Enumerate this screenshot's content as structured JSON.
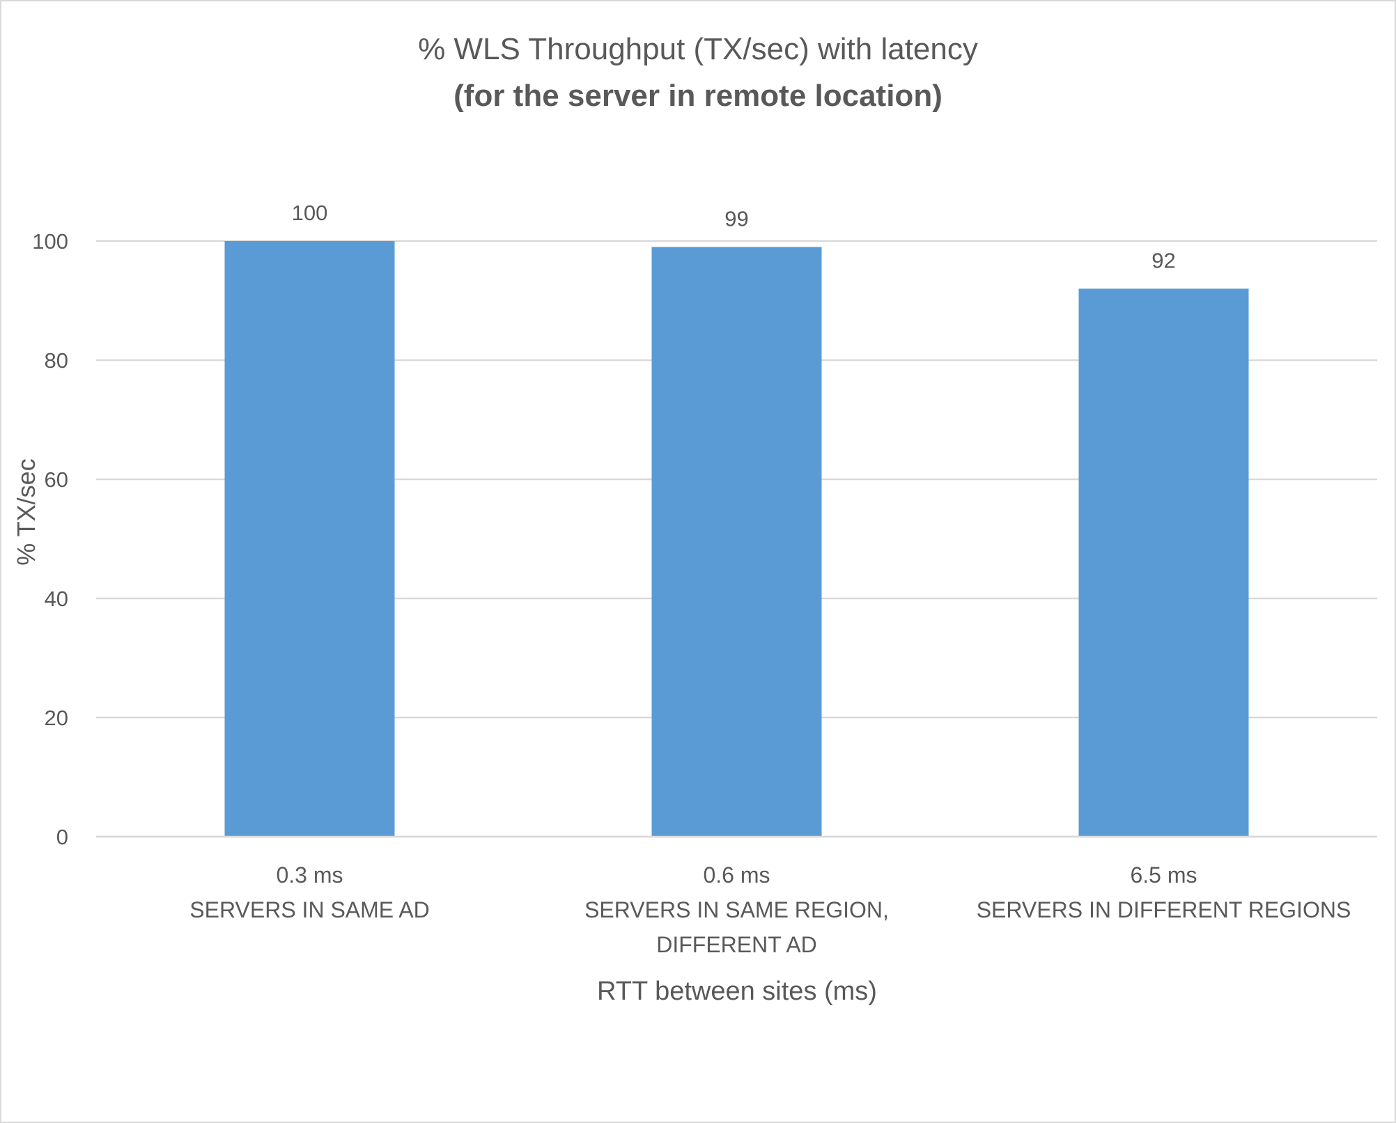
{
  "chart_data": {
    "type": "bar",
    "title": "% WLS Throughput (TX/sec) with latency",
    "subtitle": "(for the server in remote location)",
    "xlabel": "RTT between sites (ms)",
    "ylabel": "% TX/sec",
    "ylim": [
      0,
      100
    ],
    "yticks": [
      "0",
      "20",
      "40",
      "60",
      "80",
      "100"
    ],
    "grid": true,
    "categories": [
      [
        "0.3 ms",
        "SERVERS IN SAME AD"
      ],
      [
        "0.6 ms",
        "SERVERS IN SAME REGION,",
        "DIFFERENT AD"
      ],
      [
        "6.5 ms",
        "SERVERS IN DIFFERENT REGIONS"
      ]
    ],
    "values": [
      100,
      99,
      92
    ],
    "data_labels": [
      "100",
      "99",
      "92"
    ],
    "colors": {
      "bar": "#5b9bd5",
      "grid": "#d9d9d9",
      "text": "#595959"
    }
  }
}
